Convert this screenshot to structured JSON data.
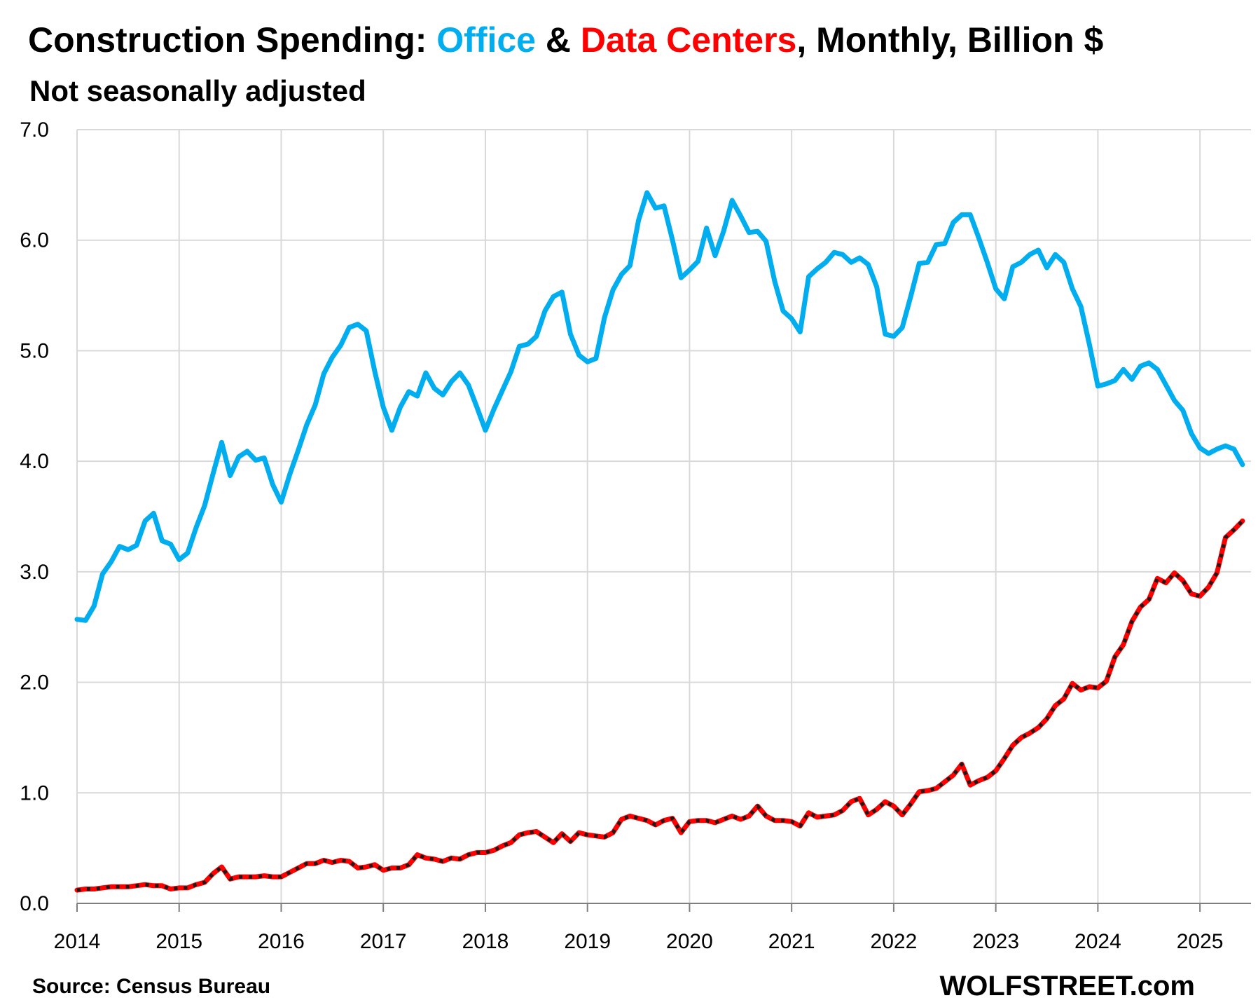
{
  "chart_data": {
    "type": "line",
    "title": {
      "part1": "Construction Spending: ",
      "office": "Office",
      "amp": " & ",
      "datacenters": "Data Centers",
      "part2": ", Monthly, Billion $"
    },
    "subtitle": "Not seasonally adjusted",
    "source": "Source: Census Bureau",
    "watermark": "WOLFSTREET.com",
    "ylim": [
      0,
      7
    ],
    "yticks": [
      "0.0",
      "1.0",
      "2.0",
      "3.0",
      "4.0",
      "5.0",
      "6.0",
      "7.0"
    ],
    "xlim": [
      2014,
      2025.5
    ],
    "xticks": [
      "2014",
      "2015",
      "2016",
      "2017",
      "2018",
      "2019",
      "2020",
      "2021",
      "2022",
      "2023",
      "2024",
      "2025"
    ],
    "grid": true,
    "colors": {
      "office": "#00aeef",
      "datacenters": "#ff0000",
      "datacenters_dash": "#1a1a1a",
      "grid": "#d9d9d9",
      "title": "#000000"
    },
    "series": [
      {
        "key": "office",
        "start": "2014-01",
        "values": [
          2.57,
          2.56,
          2.69,
          2.98,
          3.09,
          3.23,
          3.2,
          3.24,
          3.46,
          3.53,
          3.28,
          3.25,
          3.11,
          3.17,
          3.4,
          3.6,
          3.89,
          4.17,
          3.87,
          4.04,
          4.09,
          4.01,
          4.03,
          3.79,
          3.63,
          3.88,
          4.1,
          4.33,
          4.51,
          4.79,
          4.94,
          5.05,
          5.21,
          5.24,
          5.18,
          4.81,
          4.49,
          4.28,
          4.49,
          4.63,
          4.59,
          4.8,
          4.66,
          4.6,
          4.72,
          4.8,
          4.69,
          4.49,
          4.28,
          4.47,
          4.64,
          4.81,
          5.04,
          5.06,
          5.13,
          5.36,
          5.49,
          5.53,
          5.15,
          4.96,
          4.9,
          4.93,
          5.3,
          5.55,
          5.69,
          5.77,
          6.18,
          6.43,
          6.29,
          6.31,
          6.0,
          5.66,
          5.73,
          5.81,
          6.11,
          5.86,
          6.08,
          6.36,
          6.22,
          6.07,
          6.08,
          5.99,
          5.63,
          5.36,
          5.29,
          5.17,
          5.67,
          5.74,
          5.8,
          5.89,
          5.87,
          5.8,
          5.84,
          5.78,
          5.58,
          5.15,
          5.13,
          5.21,
          5.49,
          5.79,
          5.8,
          5.96,
          5.97,
          6.16,
          6.23,
          6.23,
          6.02,
          5.8,
          5.56,
          5.47,
          5.76,
          5.8,
          5.87,
          5.91,
          5.75,
          5.87,
          5.8,
          5.56,
          5.4,
          5.06,
          4.68,
          4.7,
          4.73,
          4.83,
          4.74,
          4.86,
          4.89,
          4.83,
          4.69,
          4.55,
          4.46,
          4.25,
          4.12,
          4.07,
          4.11,
          4.14,
          4.11,
          3.97
        ]
      },
      {
        "key": "datacenters",
        "start": "2014-01",
        "values": [
          0.12,
          0.13,
          0.13,
          0.14,
          0.15,
          0.15,
          0.15,
          0.16,
          0.17,
          0.16,
          0.16,
          0.13,
          0.14,
          0.14,
          0.17,
          0.19,
          0.27,
          0.33,
          0.22,
          0.24,
          0.24,
          0.24,
          0.25,
          0.24,
          0.24,
          0.28,
          0.32,
          0.36,
          0.36,
          0.39,
          0.37,
          0.39,
          0.38,
          0.32,
          0.33,
          0.35,
          0.3,
          0.32,
          0.32,
          0.35,
          0.44,
          0.41,
          0.4,
          0.38,
          0.41,
          0.4,
          0.44,
          0.46,
          0.46,
          0.48,
          0.52,
          0.55,
          0.62,
          0.64,
          0.65,
          0.6,
          0.55,
          0.63,
          0.56,
          0.64,
          0.62,
          0.61,
          0.6,
          0.64,
          0.76,
          0.79,
          0.77,
          0.75,
          0.71,
          0.75,
          0.77,
          0.64,
          0.74,
          0.75,
          0.75,
          0.73,
          0.76,
          0.79,
          0.76,
          0.79,
          0.88,
          0.79,
          0.75,
          0.75,
          0.74,
          0.7,
          0.82,
          0.78,
          0.79,
          0.8,
          0.84,
          0.92,
          0.95,
          0.8,
          0.85,
          0.92,
          0.88,
          0.8,
          0.9,
          1.01,
          1.02,
          1.04,
          1.1,
          1.16,
          1.26,
          1.07,
          1.11,
          1.14,
          1.2,
          1.31,
          1.43,
          1.5,
          1.54,
          1.59,
          1.67,
          1.79,
          1.85,
          1.99,
          1.93,
          1.96,
          1.95,
          2.01,
          2.23,
          2.34,
          2.55,
          2.68,
          2.75,
          2.94,
          2.9,
          2.99,
          2.92,
          2.8,
          2.78,
          2.86,
          2.99,
          3.31,
          3.38,
          3.46
        ]
      }
    ]
  }
}
